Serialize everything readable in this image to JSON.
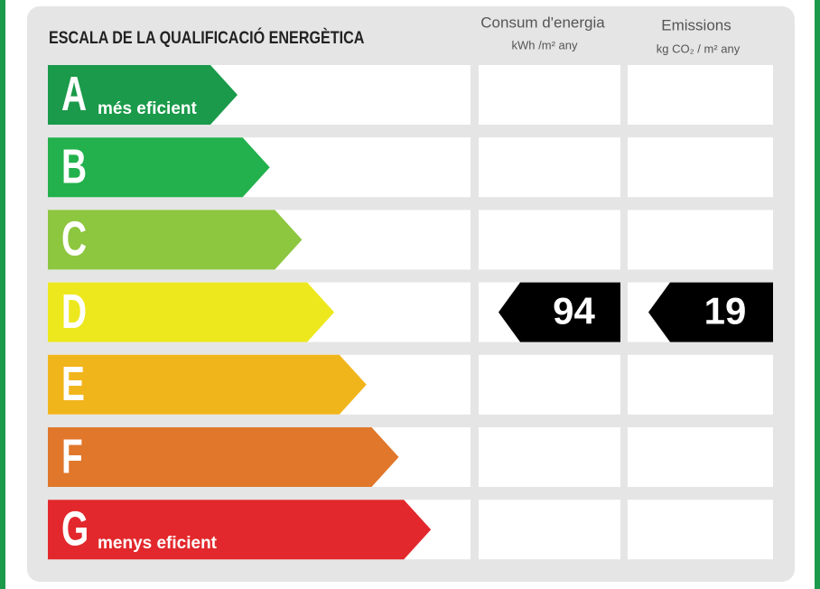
{
  "header": {
    "title": "ESCALA DE LA QUALIFICACIÓ ENERGÈTICA",
    "columns": [
      {
        "title": "Consum d'energia",
        "unit": "kWh /m² any"
      },
      {
        "title": "Emissions",
        "unit": "kg CO₂ / m² any"
      }
    ]
  },
  "scale": [
    {
      "letter": "A",
      "note": "més eficient",
      "color": "#1a9a4a"
    },
    {
      "letter": "B",
      "color": "#22b14c"
    },
    {
      "letter": "C",
      "color": "#8dc63f"
    },
    {
      "letter": "D",
      "color": "#ede81e"
    },
    {
      "letter": "E",
      "color": "#f1b51c"
    },
    {
      "letter": "F",
      "color": "#e0772b"
    },
    {
      "letter": "G",
      "note": "menys eficient",
      "color": "#e2282c"
    }
  ],
  "results": [
    {
      "class": "D",
      "value": 94
    },
    {
      "class": "D",
      "value": 19
    }
  ]
}
